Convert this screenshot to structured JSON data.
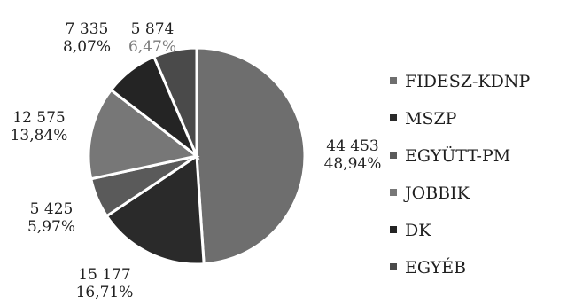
{
  "chart_data": {
    "type": "pie",
    "labels": [
      "FIDESZ-KDNP",
      "MSZP",
      "EGYÜTT-PM",
      "JOBBIK",
      "DK",
      "EGYÉB"
    ],
    "values": [
      44453,
      15177,
      5425,
      12575,
      7335,
      5874
    ],
    "value_labels": [
      "44 453",
      "15 177",
      "5 425",
      "12 575",
      "7 335",
      "5 874"
    ],
    "percent_labels": [
      "48,94%",
      "16,71%",
      "5,97%",
      "13,84%",
      "8,07%",
      "6,47%"
    ],
    "colors": [
      "#6e6e6e",
      "#2a2a2a",
      "#5a5a5a",
      "#777777",
      "#242424",
      "#4a4a4a"
    ],
    "legend_position": "right"
  }
}
